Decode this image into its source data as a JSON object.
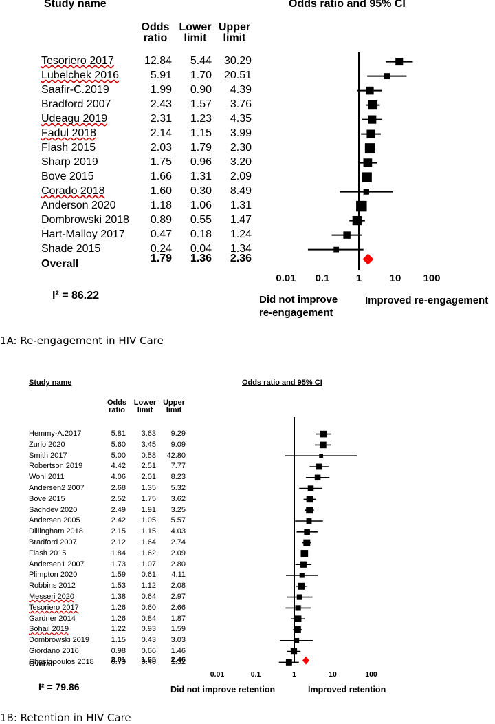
{
  "colors": {
    "marker": "#000000",
    "diamond": "#ff0000",
    "spellcheck": "#d00000"
  },
  "chart_data": [
    {
      "type": "forest",
      "panel_caption": "1A: Re-engagement in HIV Care",
      "study_header": "Study name",
      "plot_header": "Odds ratio and 95% CI",
      "col_headers": {
        "or": [
          "Odds",
          "ratio"
        ],
        "lo": [
          "Lower",
          "limit"
        ],
        "hi": [
          "Upper",
          "limit"
        ]
      },
      "x_scale": "log10",
      "x_range": [
        0.01,
        100
      ],
      "x_ticks": [
        "0.01",
        "0.1",
        "1",
        "10",
        "100"
      ],
      "left_label": [
        "Did not improve",
        "re-engagement"
      ],
      "right_label": "Improved re-engagement",
      "heterogeneity": "I² = 86.22",
      "studies": [
        {
          "name": "Tesoriero 2017",
          "or": "12.84",
          "lo": "5.44",
          "hi": "30.29",
          "weight": 0.55,
          "flag": true
        },
        {
          "name": "Lubelchek 2016",
          "or": "5.91",
          "lo": "1.70",
          "hi": "20.51",
          "weight": 0.35,
          "flag": true
        },
        {
          "name": "Saafir-C.2019",
          "or": "1.99",
          "lo": "0.90",
          "hi": "4.39",
          "weight": 0.6
        },
        {
          "name": "Bradford 2007",
          "or": "2.43",
          "lo": "1.57",
          "hi": "3.76",
          "weight": 0.75
        },
        {
          "name": "Udeagu 2019",
          "or": "2.31",
          "lo": "1.23",
          "hi": "4.35",
          "weight": 0.65,
          "flag": true
        },
        {
          "name": "Fadul 2018",
          "or": "2.14",
          "lo": "1.15",
          "hi": "3.99",
          "weight": 0.65,
          "flag": true
        },
        {
          "name": "Flash 2015",
          "or": "2.03",
          "lo": "1.79",
          "hi": "2.30",
          "weight": 0.9
        },
        {
          "name": "Sharp 2019",
          "or": "1.75",
          "lo": "0.96",
          "hi": "3.20",
          "weight": 0.7
        },
        {
          "name": "Bove 2015",
          "or": "1.66",
          "lo": "1.31",
          "hi": "2.09",
          "weight": 0.85
        },
        {
          "name": "Corado 2018",
          "or": "1.60",
          "lo": "0.30",
          "hi": "8.49",
          "weight": 0.3,
          "flag": true
        },
        {
          "name": "Anderson 2020",
          "or": "1.18",
          "lo": "1.06",
          "hi": "1.31",
          "weight": 0.95
        },
        {
          "name": "Dombrowski 2018",
          "or": "0.89",
          "lo": "0.55",
          "hi": "1.47",
          "weight": 0.75
        },
        {
          "name": "Hart-Malloy 2017",
          "or": "0.47",
          "lo": "0.18",
          "hi": "1.24",
          "weight": 0.5
        },
        {
          "name": "Shade 2015",
          "or": "0.24",
          "lo": "0.04",
          "hi": "1.34",
          "weight": 0.25
        }
      ],
      "overall": {
        "name": "Overall",
        "or": "1.79",
        "lo": "1.36",
        "hi": "2.36"
      }
    },
    {
      "type": "forest",
      "panel_caption": "1B: Retention in HIV Care",
      "study_header": "Study name",
      "plot_header": "Odds ratio and 95% CI",
      "col_headers": {
        "or": [
          "Odds",
          "ratio"
        ],
        "lo": [
          "Lower",
          "limit"
        ],
        "hi": [
          "Upper",
          "limit"
        ]
      },
      "x_scale": "log10",
      "x_range": [
        0.01,
        100
      ],
      "x_ticks": [
        "0.01",
        "0.1",
        "1",
        "10",
        "100"
      ],
      "left_label": [
        "Did not improve retention"
      ],
      "right_label": "Improved retention",
      "heterogeneity": "I² = 79.86",
      "studies": [
        {
          "name": "Hemmy-A.2017",
          "or": "5.81",
          "lo": "3.63",
          "hi": "9.29",
          "weight": 0.8
        },
        {
          "name": "Zurlo 2020",
          "or": "5.60",
          "lo": "3.45",
          "hi": "9.09",
          "weight": 0.8
        },
        {
          "name": "Smith 2017",
          "or": "5.00",
          "lo": "0.58",
          "hi": "42.80",
          "weight": 0.25
        },
        {
          "name": "Robertson 2019",
          "or": "4.42",
          "lo": "2.51",
          "hi": "7.77",
          "weight": 0.7
        },
        {
          "name": "Wohl 2011",
          "or": "4.06",
          "lo": "2.01",
          "hi": "8.23",
          "weight": 0.65
        },
        {
          "name": "Andersen2 2007",
          "or": "2.68",
          "lo": "1.35",
          "hi": "5.32",
          "weight": 0.65
        },
        {
          "name": "Bove 2015",
          "or": "2.52",
          "lo": "1.75",
          "hi": "3.62",
          "weight": 0.8
        },
        {
          "name": "Sachdev 2020",
          "or": "2.49",
          "lo": "1.91",
          "hi": "3.25",
          "weight": 0.85
        },
        {
          "name": "Andersen 2005",
          "or": "2.42",
          "lo": "1.05",
          "hi": "5.57",
          "weight": 0.55
        },
        {
          "name": "Dillingham 2018",
          "or": "2.15",
          "lo": "1.15",
          "hi": "4.03",
          "weight": 0.65
        },
        {
          "name": "Bradford 2007",
          "or": "2.12",
          "lo": "1.64",
          "hi": "2.74",
          "weight": 0.85
        },
        {
          "name": "Flash 2015",
          "or": "1.84",
          "lo": "1.62",
          "hi": "2.09",
          "weight": 0.95
        },
        {
          "name": "Andersen1 2007",
          "or": "1.73",
          "lo": "1.07",
          "hi": "2.80",
          "weight": 0.75
        },
        {
          "name": "Plimpton 2020",
          "or": "1.59",
          "lo": "0.61",
          "hi": "4.11",
          "weight": 0.45
        },
        {
          "name": "Robbins 2012",
          "or": "1.53",
          "lo": "1.12",
          "hi": "2.08",
          "weight": 0.85
        },
        {
          "name": "Messeri 2020",
          "or": "1.38",
          "lo": "0.64",
          "hi": "2.97",
          "weight": 0.6,
          "flag": true
        },
        {
          "name": "Tesoriero 2017",
          "or": "1.26",
          "lo": "0.60",
          "hi": "2.66",
          "weight": 0.6,
          "flag": true
        },
        {
          "name": "Gardner 2014",
          "or": "1.26",
          "lo": "0.84",
          "hi": "1.87",
          "weight": 0.8
        },
        {
          "name": "Sohail 2019",
          "or": "1.22",
          "lo": "0.93",
          "hi": "1.59",
          "weight": 0.85,
          "flag": true
        },
        {
          "name": "Dombrowski 2019",
          "or": "1.15",
          "lo": "0.43",
          "hi": "3.03",
          "weight": 0.5
        },
        {
          "name": "Giordano 2016",
          "or": "0.98",
          "lo": "0.66",
          "hi": "1.46",
          "weight": 0.75
        },
        {
          "name": "Christopoulos 2018",
          "or": "0.73",
          "lo": "0.40",
          "hi": "1.32",
          "weight": 0.7
        }
      ],
      "overall": {
        "name": "Overall",
        "or": "2.01",
        "lo": "1.65",
        "hi": "2.46"
      }
    }
  ]
}
